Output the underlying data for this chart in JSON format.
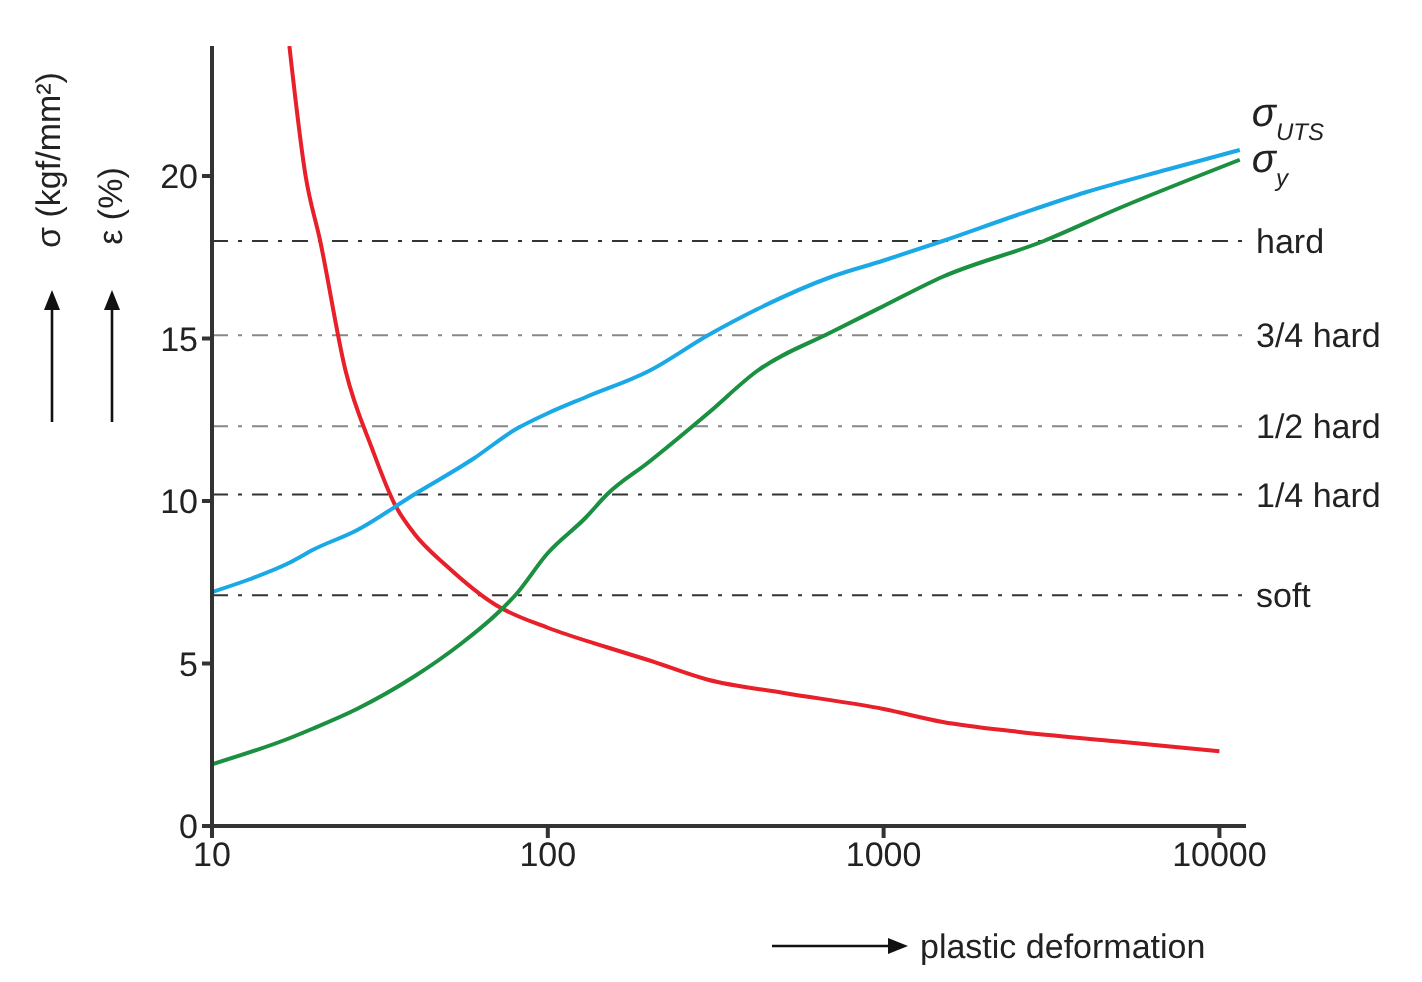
{
  "chart_data": {
    "type": "line",
    "ylabel": "σ (kgf/mm²)",
    "xlabel": "plastic deformation",
    "annotations": [
      "ε (%)"
    ],
    "log": "x",
    "xlim": [
      10,
      12000
    ],
    "xticks": [
      10,
      100,
      1000,
      10000
    ],
    "ylim": [
      0,
      24
    ],
    "yticks": [
      0,
      5,
      10,
      15,
      20
    ],
    "grid": false,
    "legend": false,
    "marker": "none",
    "series": [
      {
        "color": "#e8202a",
        "x": [
          17,
          19,
          21,
          25,
          30,
          35,
          40,
          50,
          70,
          100,
          150,
          200,
          300,
          500,
          1000,
          1500,
          2500,
          5000,
          10000
        ],
        "values": [
          24,
          20,
          18,
          14,
          11.6,
          9.9,
          9,
          8,
          6.8,
          6.1,
          5.5,
          5.1,
          4.5,
          4.1,
          3.6,
          3.2,
          2.9,
          2.6,
          2.3
        ]
      },
      {
        "name": "σ$_{UTS}$",
        "color": "#1aa9e6",
        "x": [
          10,
          13,
          17,
          20,
          27,
          40,
          60,
          80,
          100,
          130,
          200,
          300,
          420,
          700,
          1000,
          1500,
          2500,
          4000,
          7000,
          11500
        ],
        "values": [
          7.2,
          7.6,
          8.1,
          8.5,
          9.1,
          10.2,
          11.3,
          12.2,
          12.7,
          13.2,
          14,
          15.1,
          15.9,
          16.9,
          17.4,
          18,
          18.8,
          19.5,
          20.2,
          20.8
        ]
      },
      {
        "name": "σ$_{y}$",
        "color": "#1a9040",
        "x": [
          10,
          17,
          20,
          27,
          40,
          55,
          70,
          80,
          100,
          130,
          150,
          200,
          300,
          420,
          700,
          1000,
          1500,
          3000,
          5000,
          11500
        ],
        "values": [
          1.9,
          2.7,
          3,
          3.6,
          4.6,
          5.6,
          6.5,
          7.1,
          8.4,
          9.5,
          10.2,
          11.2,
          12.7,
          14,
          15.2,
          16,
          16.9,
          18,
          19,
          20.5
        ]
      }
    ],
    "ref_lines": [
      {
        "axis": "y",
        "value": 18,
        "label": "hard",
        "color": "#333333",
        "line_style": "dashed"
      },
      {
        "axis": "y",
        "value": 15.1,
        "label": "3/4 hard",
        "color": "#888888",
        "line_style": "dashed"
      },
      {
        "axis": "y",
        "value": 12.3,
        "label": "1/2 hard",
        "color": "#888888",
        "line_style": "dashed"
      },
      {
        "axis": "y",
        "value": 10.2,
        "label": "1/4 hard",
        "color": "#333333",
        "line_style": "dashed"
      },
      {
        "axis": "y",
        "value": 7.1,
        "label": "soft",
        "color": "#333333",
        "line_style": "dashed"
      }
    ]
  }
}
